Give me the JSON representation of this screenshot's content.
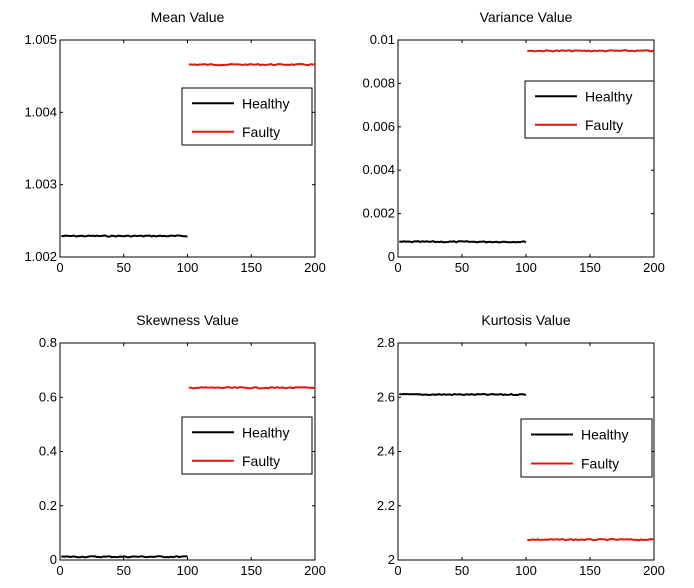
{
  "chart_data": [
    {
      "type": "line",
      "title": "Mean Value",
      "xlim": [
        0,
        200
      ],
      "ylim": [
        1.002,
        1.005
      ],
      "xticks": [
        0,
        50,
        100,
        150,
        200
      ],
      "xtick_labels": [
        "0",
        "50",
        "100",
        "150",
        "200"
      ],
      "yticks": [
        1.002,
        1.003,
        1.004,
        1.005
      ],
      "ytick_labels": [
        "1.002",
        "1.003",
        "1.004",
        "1.005"
      ],
      "legend": "right",
      "grid": false,
      "series": [
        {
          "name": "Healthy",
          "color": "#000000",
          "x": [
            1,
            100
          ],
          "y": [
            1.00229,
            1.00229
          ]
        },
        {
          "name": "Faulty",
          "color": "#e0190f",
          "x": [
            101,
            200
          ],
          "y": [
            1.00466,
            1.00466
          ]
        }
      ]
    },
    {
      "type": "line",
      "title": "Variance Value",
      "xlim": [
        0,
        200
      ],
      "ylim": [
        0,
        0.01
      ],
      "xticks": [
        0,
        50,
        100,
        150,
        200
      ],
      "xtick_labels": [
        "0",
        "50",
        "100",
        "150",
        "200"
      ],
      "yticks": [
        0,
        0.002,
        0.004,
        0.006,
        0.008,
        0.01
      ],
      "ytick_labels": [
        "0",
        "0.002",
        "0.004",
        "0.006",
        "0.008",
        "0.01"
      ],
      "legend": "right",
      "grid": false,
      "series": [
        {
          "name": "Healthy",
          "color": "#000000",
          "x": [
            1,
            100
          ],
          "y": [
            0.0007,
            0.0007
          ]
        },
        {
          "name": "Faulty",
          "color": "#e0190f",
          "x": [
            101,
            200
          ],
          "y": [
            0.0095,
            0.0095
          ]
        }
      ]
    },
    {
      "type": "line",
      "title": "Skewness Value",
      "xlim": [
        0,
        200
      ],
      "ylim": [
        0,
        0.8
      ],
      "xticks": [
        0,
        50,
        100,
        150,
        200
      ],
      "xtick_labels": [
        "0",
        "50",
        "100",
        "150",
        "200"
      ],
      "yticks": [
        0,
        0.2,
        0.4,
        0.6,
        0.8
      ],
      "ytick_labels": [
        "0",
        "0.2",
        "0.4",
        "0.6",
        "0.8"
      ],
      "legend": "right",
      "grid": false,
      "series": [
        {
          "name": "Healthy",
          "color": "#000000",
          "x": [
            1,
            100
          ],
          "y": [
            0.012,
            0.012
          ]
        },
        {
          "name": "Faulty",
          "color": "#e0190f",
          "x": [
            101,
            200
          ],
          "y": [
            0.635,
            0.635
          ]
        }
      ]
    },
    {
      "type": "line",
      "title": "Kurtosis Value",
      "xlim": [
        0,
        200
      ],
      "ylim": [
        2,
        2.8
      ],
      "xticks": [
        0,
        50,
        100,
        150,
        200
      ],
      "xtick_labels": [
        "0",
        "50",
        "100",
        "150",
        "200"
      ],
      "yticks": [
        2,
        2.2,
        2.4,
        2.6,
        2.8
      ],
      "ytick_labels": [
        "2",
        "2.2",
        "2.4",
        "2.6",
        "2.8"
      ],
      "legend": "right",
      "grid": false,
      "series": [
        {
          "name": "Healthy",
          "color": "#000000",
          "x": [
            1,
            100
          ],
          "y": [
            2.61,
            2.61
          ]
        },
        {
          "name": "Faulty",
          "color": "#e0190f",
          "x": [
            101,
            200
          ],
          "y": [
            2.075,
            2.075
          ]
        }
      ]
    }
  ]
}
